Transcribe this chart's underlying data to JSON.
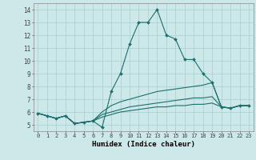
{
  "xlabel": "Humidex (Indice chaleur)",
  "xlim": [
    -0.5,
    23.5
  ],
  "ylim": [
    4.5,
    14.5
  ],
  "xticks": [
    0,
    1,
    2,
    3,
    4,
    5,
    6,
    7,
    8,
    9,
    10,
    11,
    12,
    13,
    14,
    15,
    16,
    17,
    18,
    19,
    20,
    21,
    22,
    23
  ],
  "yticks": [
    5,
    6,
    7,
    8,
    9,
    10,
    11,
    12,
    13,
    14
  ],
  "background_color": "#cce8e8",
  "grid_color": "#aacece",
  "line_color": "#1e6e6e",
  "series": [
    [
      5.9,
      5.7,
      5.5,
      5.7,
      5.1,
      5.2,
      5.3,
      4.8,
      7.6,
      9.0,
      11.3,
      13.0,
      13.0,
      14.0,
      12.0,
      11.7,
      10.1,
      10.1,
      9.0,
      8.3,
      6.4,
      6.3,
      6.5,
      6.5
    ],
    [
      5.9,
      5.7,
      5.5,
      5.7,
      5.1,
      5.2,
      5.3,
      6.0,
      6.5,
      6.8,
      7.0,
      7.2,
      7.4,
      7.6,
      7.7,
      7.8,
      7.9,
      8.0,
      8.1,
      8.3,
      6.4,
      6.3,
      6.5,
      6.5
    ],
    [
      5.9,
      5.7,
      5.5,
      5.7,
      5.1,
      5.2,
      5.3,
      5.8,
      6.0,
      6.2,
      6.4,
      6.5,
      6.6,
      6.7,
      6.8,
      6.9,
      7.0,
      7.1,
      7.1,
      7.2,
      6.4,
      6.3,
      6.5,
      6.5
    ],
    [
      5.9,
      5.7,
      5.5,
      5.7,
      5.1,
      5.2,
      5.3,
      5.6,
      5.8,
      6.0,
      6.1,
      6.2,
      6.3,
      6.4,
      6.4,
      6.5,
      6.5,
      6.6,
      6.6,
      6.7,
      6.4,
      6.3,
      6.5,
      6.5
    ]
  ]
}
